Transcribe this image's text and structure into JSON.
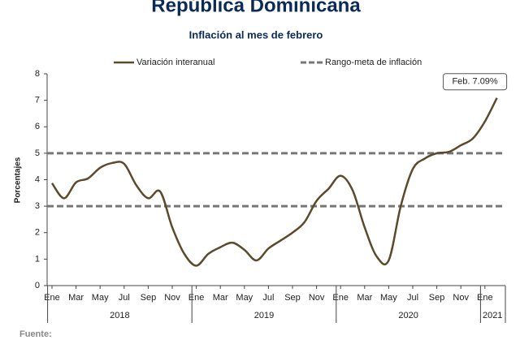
{
  "chart_data": {
    "type": "line",
    "title": "República Dominicana",
    "subtitle": "Inflación al mes de febrero",
    "y_label": "Porcentajes",
    "footer": "Fuente:",
    "annotation": "Feb. 7.09%",
    "categories": [
      "Ene",
      null,
      "Mar",
      null,
      "May",
      null,
      "Jul",
      null,
      "Sep",
      null,
      "Nov",
      null,
      "Ene",
      null,
      "Mar",
      null,
      "May",
      null,
      "Jul",
      null,
      "Sep",
      null,
      "Nov",
      null,
      "Ene",
      null,
      "Mar",
      null,
      "May",
      null,
      "Jul",
      null,
      "Sep",
      null,
      "Nov",
      null,
      "Ene",
      null
    ],
    "years": [
      "2018",
      "2019",
      "2020",
      "2021"
    ],
    "series": [
      {
        "name": "Variación interanual",
        "color": "#5c4a2c",
        "values": [
          3.87,
          3.3,
          3.9,
          4.05,
          4.45,
          4.63,
          4.6,
          3.8,
          3.3,
          3.55,
          2.2,
          1.2,
          0.75,
          1.2,
          1.45,
          1.62,
          1.35,
          0.95,
          1.4,
          1.7,
          2.0,
          2.4,
          3.2,
          3.66,
          4.15,
          3.6,
          2.2,
          1.1,
          0.95,
          3.0,
          4.4,
          4.8,
          5.0,
          5.05,
          5.3,
          5.56,
          6.2,
          7.09
        ]
      }
    ],
    "reference": {
      "name": "Rango-meta de inflación",
      "color": "#777777",
      "values": [
        3,
        5
      ]
    },
    "ylim": [
      0,
      8
    ],
    "yticks": [
      0,
      1,
      2,
      3,
      4,
      5,
      6,
      7,
      8
    ]
  }
}
